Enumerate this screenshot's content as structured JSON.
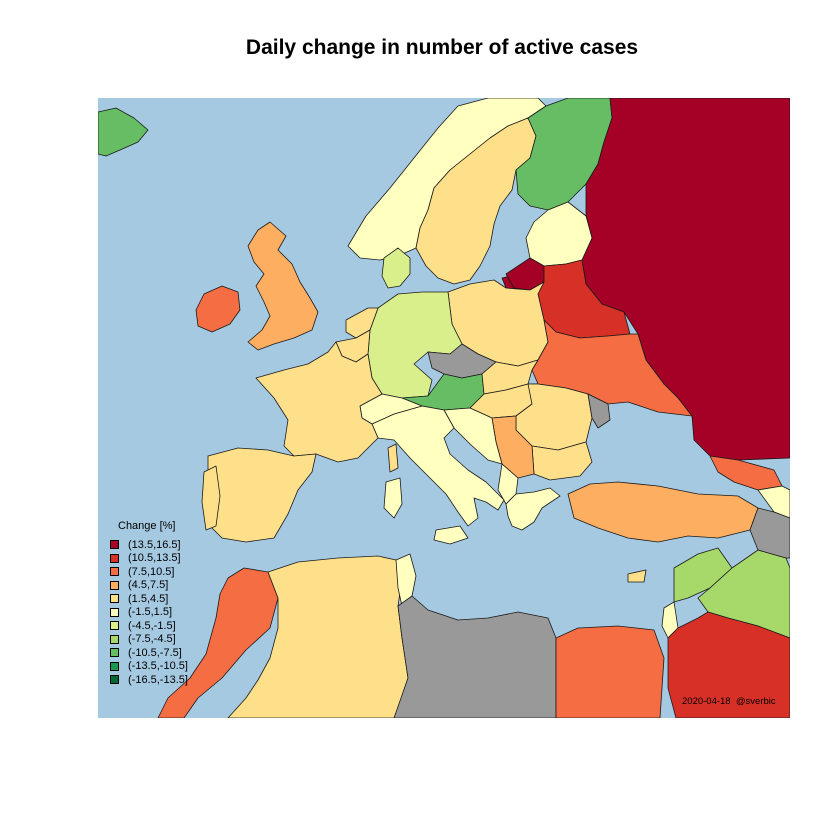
{
  "title": "Daily change in number of active cases",
  "legend": {
    "title": "Change [%]",
    "items": [
      {
        "label": "(13.5,16.5]",
        "color": "#a50026"
      },
      {
        "label": "(10.5,13.5]",
        "color": "#d73027"
      },
      {
        "label": "(7.5,10.5]",
        "color": "#f46d43"
      },
      {
        "label": "(4.5,7.5]",
        "color": "#fdae61"
      },
      {
        "label": "(1.5,4.5]",
        "color": "#fee08b"
      },
      {
        "label": "(-1.5,1.5]",
        "color": "#ffffbf"
      },
      {
        "label": "(-4.5,-1.5]",
        "color": "#d9ef8b"
      },
      {
        "label": "(-7.5,-4.5]",
        "color": "#a6d96a"
      },
      {
        "label": "(-10.5,-7.5]",
        "color": "#66bd63"
      },
      {
        "label": "(-13.5,-10.5]",
        "color": "#1a9850"
      },
      {
        "label": "(-16.5,-13.5]",
        "color": "#006837"
      }
    ]
  },
  "colors": {
    "sea": "#a6c9e2",
    "no_data": "#999999"
  },
  "footer": {
    "date": "2020-04-18",
    "author": "@sverbic"
  },
  "regions": [
    {
      "name": "Russia",
      "class": "(13.5,16.5]"
    },
    {
      "name": "Lithuania",
      "class": "(13.5,16.5]"
    },
    {
      "name": "Belarus",
      "class": "(10.5,13.5]"
    },
    {
      "name": "Ireland",
      "class": "(7.5,10.5]"
    },
    {
      "name": "Ukraine",
      "class": "(7.5,10.5]"
    },
    {
      "name": "Morocco",
      "class": "(7.5,10.5]"
    },
    {
      "name": "Egypt",
      "class": "(7.5,10.5]"
    },
    {
      "name": "United Kingdom",
      "class": "(4.5,7.5]"
    },
    {
      "name": "Turkey",
      "class": "(4.5,7.5]"
    },
    {
      "name": "Serbia",
      "class": "(4.5,7.5]"
    },
    {
      "name": "Sweden",
      "class": "(1.5,4.5]"
    },
    {
      "name": "France",
      "class": "(1.5,4.5]"
    },
    {
      "name": "Spain",
      "class": "(1.5,4.5]"
    },
    {
      "name": "Poland",
      "class": "(1.5,4.5]"
    },
    {
      "name": "Algeria",
      "class": "(1.5,4.5]"
    },
    {
      "name": "Romania",
      "class": "(1.5,4.5]"
    },
    {
      "name": "Norway",
      "class": "(-1.5,1.5]"
    },
    {
      "name": "Italy",
      "class": "(-1.5,1.5]"
    },
    {
      "name": "Latvia",
      "class": "(-1.5,1.5]"
    },
    {
      "name": "Germany",
      "class": "(-4.5,-1.5]"
    },
    {
      "name": "Denmark",
      "class": "(-4.5,-1.5]"
    },
    {
      "name": "Syria",
      "class": "(-7.5,-4.5]"
    },
    {
      "name": "Iraq",
      "class": "(-7.5,-4.5]"
    },
    {
      "name": "Finland",
      "class": "(-10.5,-7.5]"
    },
    {
      "name": "Austria",
      "class": "(-10.5,-7.5]"
    },
    {
      "name": "Greenland",
      "class": "(-10.5,-7.5]"
    },
    {
      "name": "Saudi Arabia",
      "class": "(10.5,13.5]"
    },
    {
      "name": "Czechia",
      "class": "no data"
    },
    {
      "name": "Libya",
      "class": "no data"
    }
  ]
}
